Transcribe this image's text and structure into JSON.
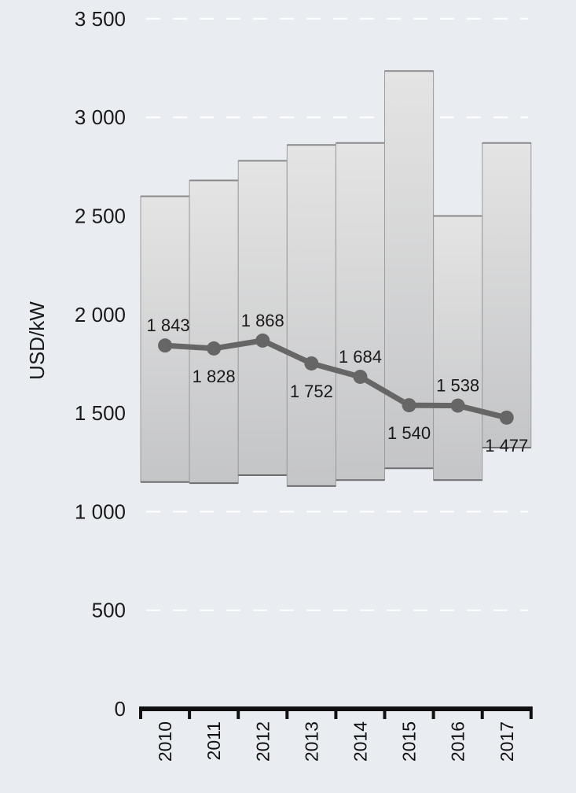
{
  "chart_data": {
    "type": "bar",
    "title": "",
    "xlabel": "",
    "ylabel": "USD/kW",
    "ylim": [
      0,
      3500
    ],
    "yticks": [
      0,
      500,
      1000,
      1500,
      2000,
      2500,
      3000,
      3500
    ],
    "ytick_labels": [
      "0",
      "500",
      "1 000",
      "1 500",
      "2 000",
      "2 500",
      "3 000",
      "3 500"
    ],
    "categories": [
      "2010",
      "2011",
      "2012",
      "2013",
      "2014",
      "2015",
      "2016",
      "2017"
    ],
    "ranges": [
      {
        "low": 1150,
        "high": 2600
      },
      {
        "low": 1145,
        "high": 2680
      },
      {
        "low": 1185,
        "high": 2780
      },
      {
        "low": 1130,
        "high": 2860
      },
      {
        "low": 1160,
        "high": 2870
      },
      {
        "low": 1220,
        "high": 3235
      },
      {
        "low": 1160,
        "high": 2500
      },
      {
        "low": 1325,
        "high": 2870
      }
    ],
    "series": [
      {
        "type": "line",
        "values": [
          1843,
          1828,
          1868,
          1752,
          1684,
          1540,
          1538,
          1477
        ],
        "labels": [
          "1 843",
          "1 828",
          "1 868",
          "1 752",
          "1 684",
          "1 540",
          "1 538",
          "1 477"
        ]
      }
    ],
    "grid": "dashed horizontal",
    "colors": {
      "background": "#e9edf2",
      "bar_top": "#e4e4e4",
      "bar_bottom": "#c4c5c7",
      "bar_edge": "#9c9c9c",
      "line": "#666666",
      "grid": "#ffffff",
      "axis": "#111111"
    }
  }
}
